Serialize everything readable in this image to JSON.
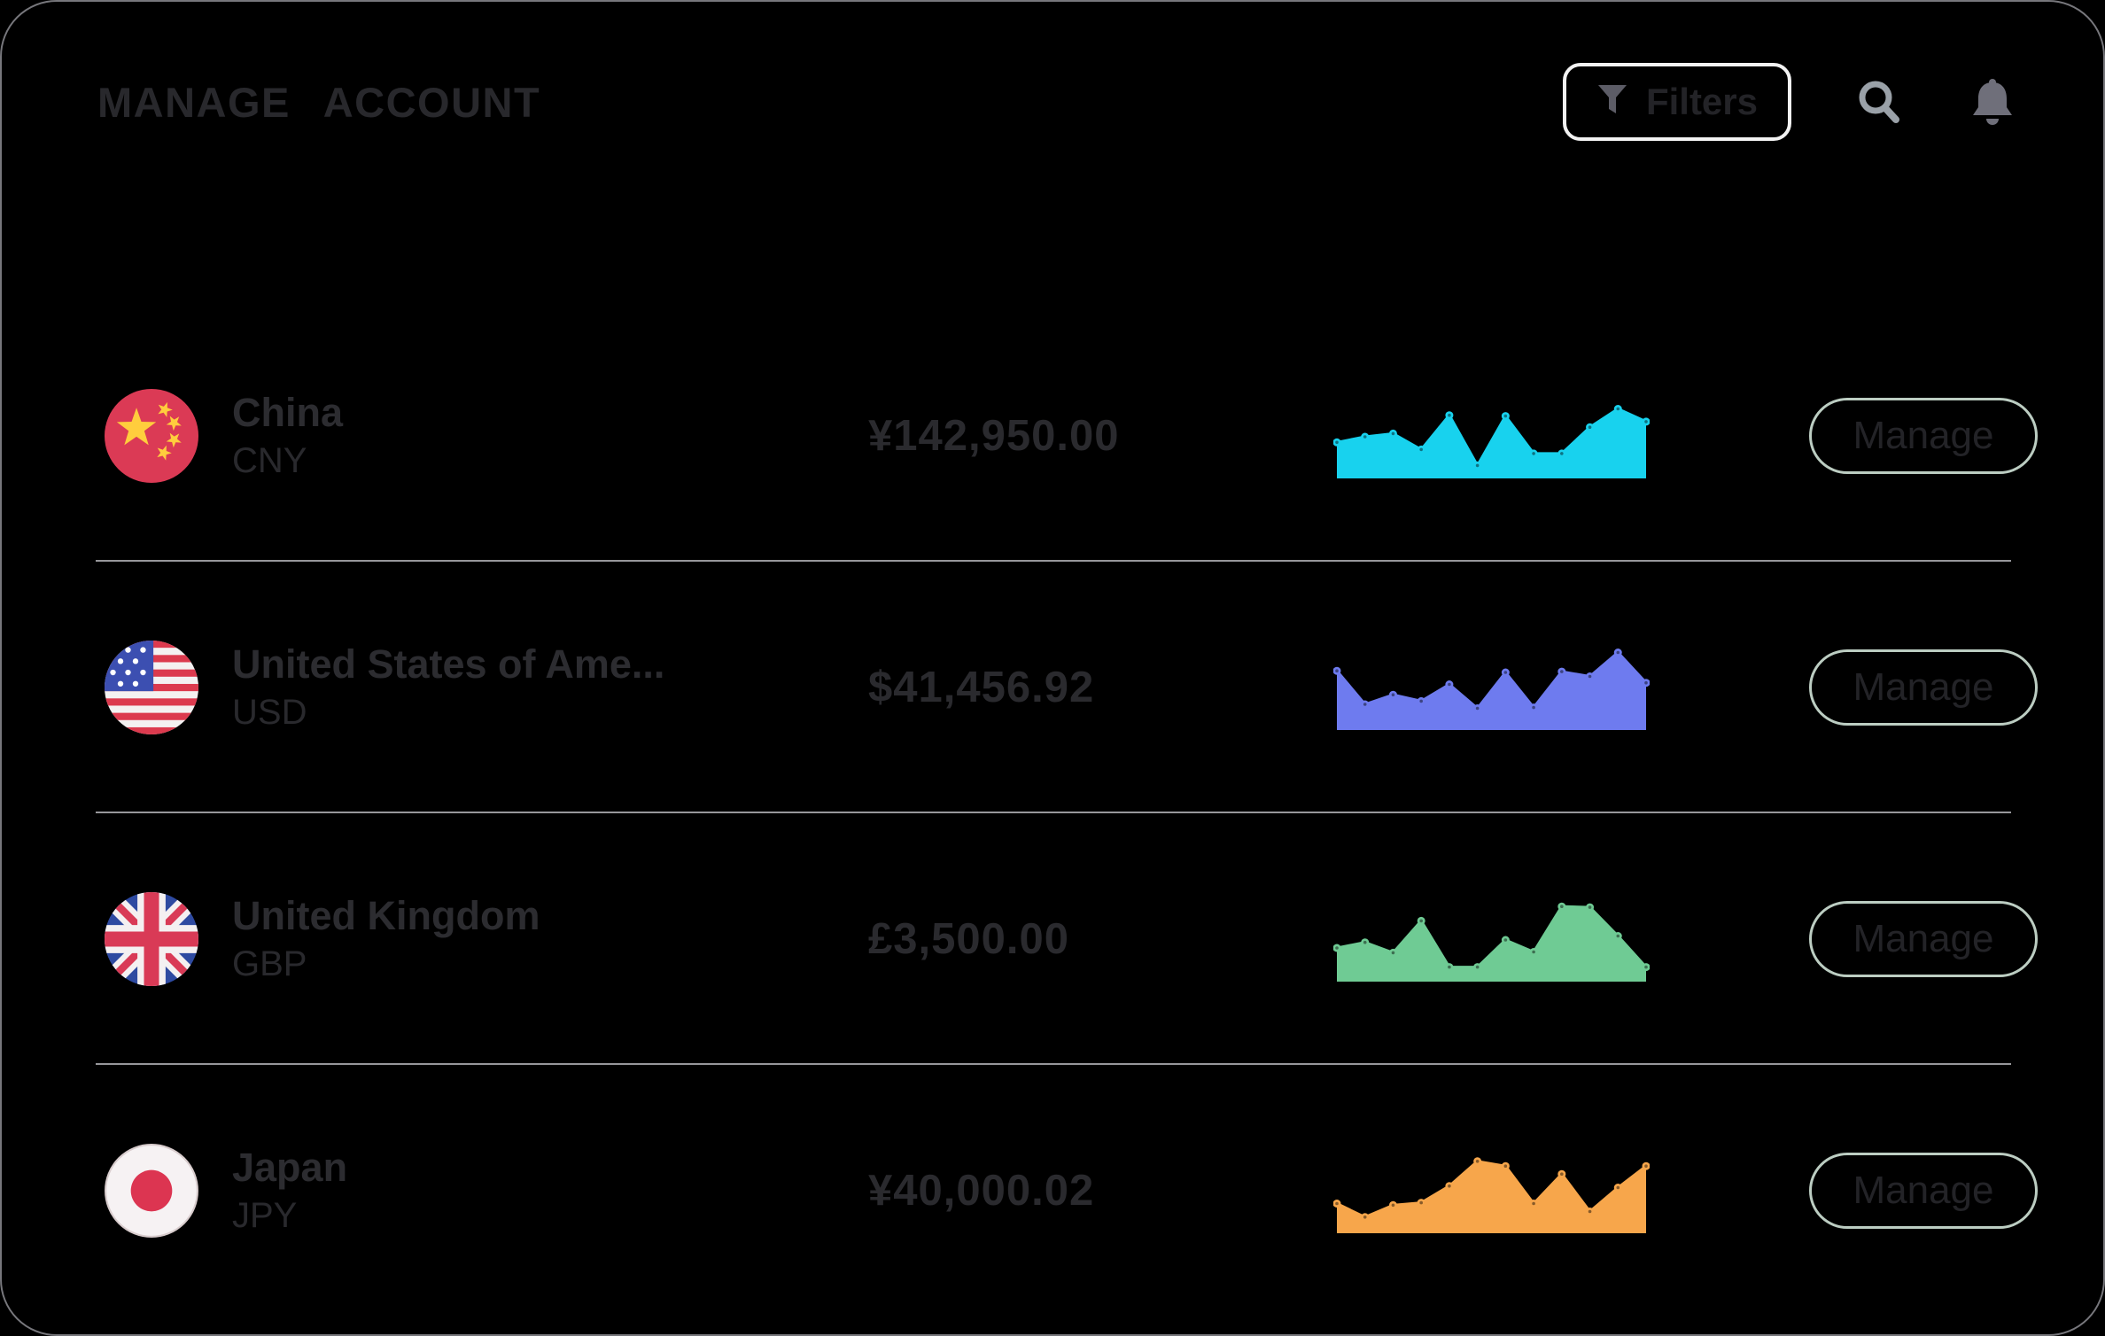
{
  "header": {
    "title": "MANAGE  ACCOUNT",
    "filters_label": "Filters",
    "icons": [
      "funnel-icon",
      "search-icon",
      "bell-icon"
    ]
  },
  "colors": {
    "background": "#000000",
    "frame_border": "#77777c",
    "divider": "#97979b",
    "filters_border": "#f2f2f2",
    "manage_border": "#bccdc2",
    "text_dark": "#2a2a2e"
  },
  "accounts": [
    {
      "country": "China",
      "code": "CNY",
      "amount": "¥142,950.00",
      "manage_label": "Manage",
      "flag": "china-flag",
      "spark_color": "#18d2ee",
      "spark_values": [
        43,
        50,
        54,
        34,
        77,
        14,
        76,
        29,
        29,
        62,
        85,
        69
      ]
    },
    {
      "country": "United States of Ame...",
      "code": "USD",
      "amount": "$41,456.92",
      "manage_label": "Manage",
      "flag": "usa-flag",
      "spark_color": "#6e7bef",
      "spark_values": [
        72,
        30,
        42,
        34,
        55,
        25,
        70,
        26,
        71,
        65,
        95,
        57
      ]
    },
    {
      "country": "United Kingdom",
      "code": "GBP",
      "amount": "£3,500.00",
      "manage_label": "Manage",
      "flag": "uk-flag",
      "spark_color": "#6fcb94",
      "spark_values": [
        40,
        47,
        34,
        74,
        16,
        16,
        50,
        35,
        92,
        91,
        55,
        16
      ]
    },
    {
      "country": "Japan",
      "code": "JPY",
      "amount": "¥40,000.02",
      "manage_label": "Manage",
      "flag": "japan-flag",
      "spark_color": "#f7a64b",
      "spark_values": [
        35,
        18,
        33,
        36,
        57,
        88,
        82,
        35,
        72,
        25,
        55,
        82
      ]
    }
  ]
}
